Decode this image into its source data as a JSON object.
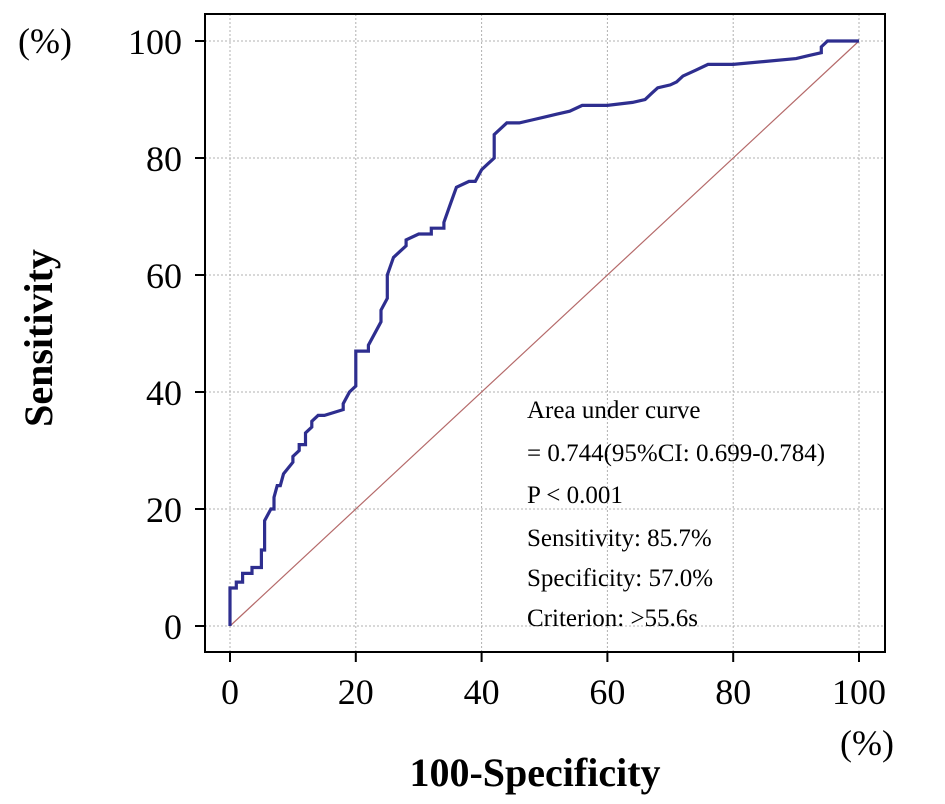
{
  "chart_data": {
    "type": "line",
    "title": "",
    "xlabel": "100-Specificity",
    "ylabel": "Sensitivity",
    "x_unit": "(%)",
    "y_unit": "(%)",
    "xlim": [
      0,
      100
    ],
    "ylim": [
      0,
      100
    ],
    "xticks": [
      "0",
      "20",
      "40",
      "60",
      "80",
      "100"
    ],
    "yticks": [
      "0",
      "20",
      "40",
      "60",
      "80",
      "100"
    ],
    "grid": true,
    "colors": {
      "roc": "#2e2e8f",
      "reference": "#b56a6a",
      "grid": "#b0b0b0"
    },
    "series": [
      {
        "name": "ROC curve",
        "x": [
          0,
          0,
          1,
          1,
          2,
          2,
          3.5,
          3.5,
          5,
          5,
          5.5,
          5.5,
          6.5,
          7,
          7,
          7.5,
          8,
          8.5,
          8.5,
          10,
          10,
          11,
          11,
          12,
          12,
          13,
          13,
          14,
          14,
          15,
          18,
          18,
          19,
          20,
          20,
          22,
          22,
          24,
          24,
          25,
          25,
          26,
          27,
          28,
          28,
          30,
          32,
          32,
          34,
          34,
          35,
          36,
          36,
          38,
          39,
          40,
          41,
          42,
          42,
          44,
          46,
          48,
          50,
          52,
          54,
          56,
          60,
          64,
          66,
          67,
          68,
          70,
          71,
          72,
          74,
          76,
          80,
          85,
          90,
          92,
          94,
          94,
          95,
          100
        ],
        "y": [
          0,
          6.5,
          6.5,
          7.5,
          7.5,
          9,
          9,
          10,
          10,
          13,
          13,
          18,
          20,
          20,
          22,
          24,
          24,
          26,
          26,
          28,
          29,
          30,
          31,
          31,
          33,
          34,
          35,
          36,
          36,
          36,
          37,
          38,
          40,
          41,
          47,
          47,
          48,
          52,
          54,
          56,
          60,
          63,
          64,
          65,
          66,
          67,
          67,
          68,
          68,
          69,
          72,
          75,
          75,
          76,
          76,
          78,
          79,
          80,
          84,
          86,
          86,
          86.5,
          87,
          87.5,
          88,
          89,
          89,
          89.5,
          90,
          91,
          92,
          92.5,
          93,
          94,
          95,
          96,
          96,
          96.5,
          97,
          97.5,
          98,
          99,
          100,
          100
        ]
      },
      {
        "name": "Reference line",
        "x": [
          0,
          100
        ],
        "y": [
          0,
          100
        ]
      }
    ],
    "annotations": {
      "line1": "Area under curve",
      "line2": "= 0.744(95%CI: 0.699-0.784)",
      "line3": "P < 0.001",
      "line4": "Sensitivity:  85.7%",
      "line5": "Specificity:  57.0%",
      "line6": "Criterion: >55.6s"
    }
  }
}
